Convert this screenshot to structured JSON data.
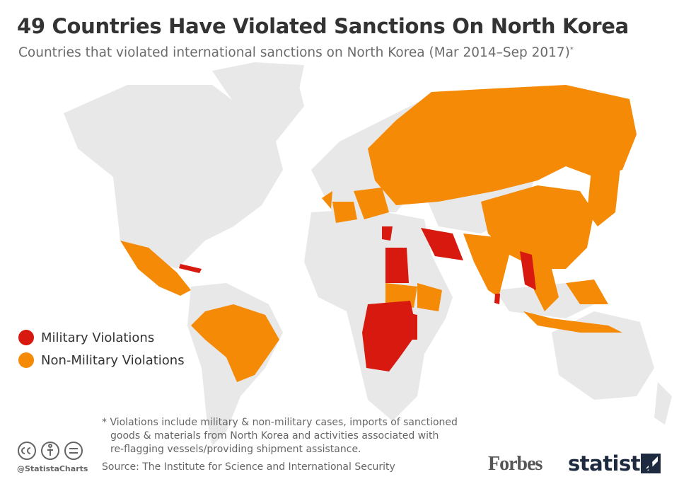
{
  "header": {
    "title": "49 Countries Have Violated Sanctions On North Korea",
    "subtitle": "Countries that violated international sanctions on North Korea (Mar 2014–Sep 2017)",
    "subtitle_mark": "*"
  },
  "legend": {
    "items": [
      {
        "label": "Military Violations",
        "color": "#d7190f"
      },
      {
        "label": "Non-Military Violations",
        "color": "#f58a07"
      }
    ]
  },
  "footnote": {
    "lines": [
      "* Violations include military & non-military cases, imports of sanctioned",
      "goods & materials from North Korea and activities associated with",
      "re-flagging vessels/providing shipment assistance."
    ]
  },
  "footer": {
    "handle": "@StatistaCharts",
    "source": "Source: The Institute for Science and International Security",
    "logos": [
      "Forbes",
      "statista"
    ]
  }
}
